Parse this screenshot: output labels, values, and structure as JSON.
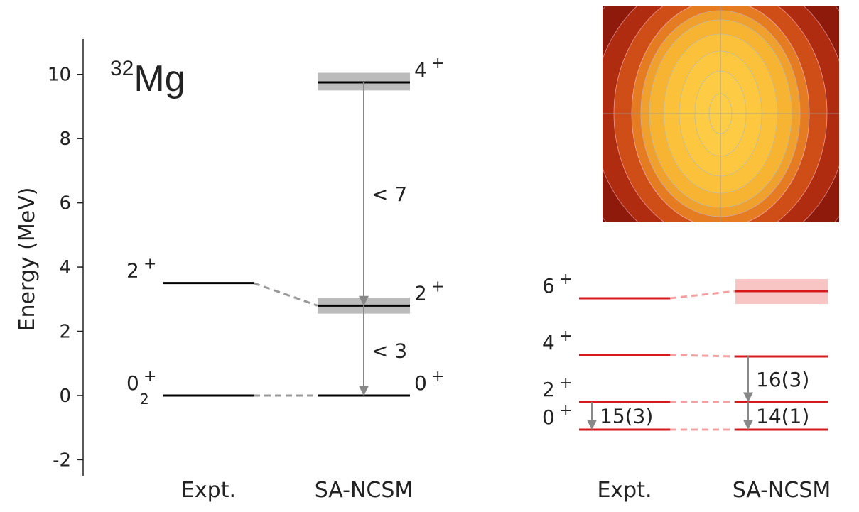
{
  "chart_data": [
    {
      "type": "level_scheme",
      "title_mass": "32",
      "title_element": "Mg",
      "y_label": "Energy (MeV)",
      "ylim": [
        -2.5,
        11.1
      ],
      "yticks": [
        -2,
        0,
        2,
        4,
        6,
        8,
        10
      ],
      "connector_color": "#999999",
      "arrow_color": "#888888",
      "series": [
        {
          "name": "Expt.",
          "color": "#000000",
          "band_color": "#bbbbbb",
          "levels": [
            {
              "spin": "0",
              "index": "2",
              "parity": "+",
              "energy": 0
            },
            {
              "spin": "2",
              "parity": "+",
              "energy": 3.5
            }
          ]
        },
        {
          "name": "SA-NCSM",
          "color": "#000000",
          "band_color": "#bbbbbb",
          "levels": [
            {
              "spin": "0",
              "parity": "+",
              "energy": 0
            },
            {
              "spin": "2",
              "parity": "+",
              "energy": 2.8,
              "band": [
                2.55,
                3.05
              ],
              "transition_label": "< 3"
            },
            {
              "spin": "4",
              "parity": "+",
              "energy": 9.75,
              "band": [
                9.5,
                10.05
              ],
              "transition_label": "< 7"
            }
          ]
        }
      ]
    },
    {
      "type": "level_scheme",
      "ylim": [
        -0.3,
        4.5
      ],
      "connector_color": "#f4a0a0",
      "arrow_color": "#888888",
      "series": [
        {
          "name": "Expt.",
          "color": "#d7191c",
          "band_color": "#f9c4c4",
          "levels": [
            {
              "spin": "0",
              "parity": "+",
              "energy": 0
            },
            {
              "spin": "2",
              "parity": "+",
              "energy": 0.78,
              "transition_label": "15(3)"
            },
            {
              "spin": "4",
              "parity": "+",
              "energy": 2.1
            },
            {
              "spin": "6",
              "parity": "+",
              "energy": 3.7
            }
          ]
        },
        {
          "name": "SA-NCSM",
          "color": "#d7191c",
          "band_color": "#f9c4c4",
          "levels": [
            {
              "energy": 0
            },
            {
              "energy": 0.78,
              "transition_label": "14(1)"
            },
            {
              "energy": 2.06,
              "transition_label": "16(3)"
            },
            {
              "energy": 3.9,
              "band": [
                3.54,
                4.24
              ]
            }
          ]
        }
      ]
    }
  ]
}
